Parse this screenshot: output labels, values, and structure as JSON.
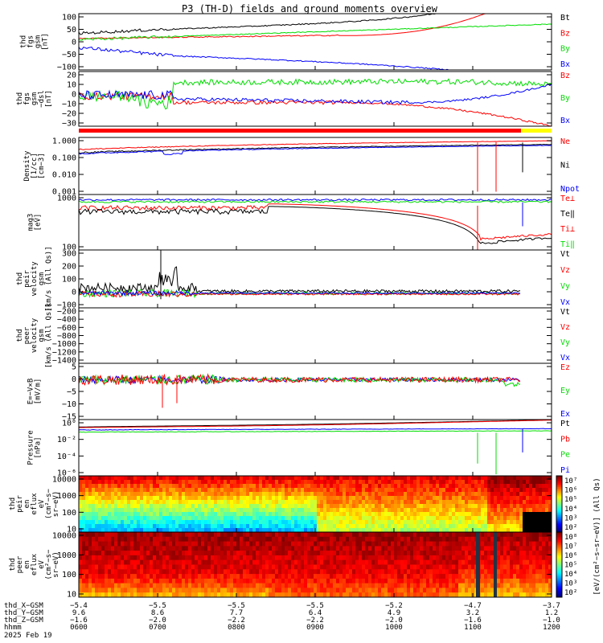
{
  "title": "P3 (TH-D) fields and ground moments overview",
  "colors": {
    "black": "#000000",
    "red": "#ff0000",
    "green": "#00dd00",
    "blue": "#0000ff"
  },
  "chart_data": [
    {
      "id": "fgs_gsm",
      "type": "line",
      "ylabel": [
        "thd",
        "fgs",
        "gsm",
        "[nT]"
      ],
      "ylim": [
        -100,
        100
      ],
      "yticks": [
        "100",
        "50",
        "0",
        "−50",
        "−100"
      ],
      "series": [
        {
          "name": "Bt",
          "color": "#000000"
        },
        {
          "name": "Bz",
          "color": "#ff0000"
        },
        {
          "name": "By",
          "color": "#00dd00"
        },
        {
          "name": "Bx",
          "color": "#0000ff"
        }
      ]
    },
    {
      "id": "fgs_gsm_dsl",
      "type": "line",
      "ylabel": [
        "thd",
        "fgs",
        "gsm",
        "−dsl",
        "[nT]"
      ],
      "ylim": [
        -38,
        22
      ],
      "yticks": [
        "20",
        "10",
        "0",
        "−10",
        "−20",
        "−30"
      ],
      "series": [
        {
          "name": "Bz",
          "color": "#ff0000"
        },
        {
          "name": "By",
          "color": "#00dd00"
        },
        {
          "name": "Bx",
          "color": "#0000ff"
        }
      ]
    },
    {
      "id": "density",
      "type": "line",
      "scale": "log",
      "ylabel": [
        "Density",
        "[1/cc]",
        "[cm−3]"
      ],
      "yticks": [
        "1.000",
        "0.100",
        "0.010",
        "0.001"
      ],
      "series": [
        {
          "name": "Ne",
          "color": "#ff0000"
        },
        {
          "name": "Ni",
          "color": "#000000"
        },
        {
          "name": "Npot",
          "color": "#0000ff"
        }
      ]
    },
    {
      "id": "temperature",
      "type": "line",
      "scale": "log",
      "ylabel": [
        "mag3",
        "[eV]"
      ],
      "yticks": [
        "1000",
        "100"
      ],
      "series": [
        {
          "name": "Te⊥",
          "color": "#ff0000"
        },
        {
          "name": "Te‖",
          "color": "#000000"
        },
        {
          "name": "Ti⊥",
          "color": "#ff0000"
        },
        {
          "name": "Ti‖",
          "color": "#00dd00"
        }
      ]
    },
    {
      "id": "peir_velocity",
      "type": "line",
      "ylabel": [
        "thd",
        "peir",
        "velocity",
        "gsm",
        "[km/s (All Qs)]"
      ],
      "ylim": [
        -100,
        300
      ],
      "yticks": [
        "300",
        "200",
        "100",
        "0",
        "−100"
      ],
      "series": [
        {
          "name": "Vt",
          "color": "#000000"
        },
        {
          "name": "Vz",
          "color": "#ff0000"
        },
        {
          "name": "Vy",
          "color": "#00dd00"
        },
        {
          "name": "Vx",
          "color": "#0000ff"
        }
      ]
    },
    {
      "id": "peer_velocity",
      "type": "line",
      "ylabel": [
        "thd",
        "peer",
        "velocity",
        "gsm",
        "[km/s (All Qs)]"
      ],
      "ylim": [
        -1450,
        -120
      ],
      "yticks": [
        "−200",
        "−400",
        "−600",
        "−800",
        "−1000",
        "−1200",
        "−1400"
      ],
      "series": [
        {
          "name": "Vt",
          "color": "#000000"
        },
        {
          "name": "Vz",
          "color": "#ff0000"
        },
        {
          "name": "Vy",
          "color": "#00dd00"
        },
        {
          "name": "Vx",
          "color": "#0000ff"
        }
      ]
    },
    {
      "id": "efield",
      "type": "line",
      "ylabel": [
        "E=−V×B",
        "[mV/m]"
      ],
      "ylim": [
        -17,
        7
      ],
      "yticks": [
        "5",
        "0",
        "−5",
        "−10",
        "−15"
      ],
      "series": [
        {
          "name": "Ez",
          "color": "#ff0000"
        },
        {
          "name": "Ey",
          "color": "#00dd00"
        },
        {
          "name": "Ex",
          "color": "#0000ff"
        }
      ]
    },
    {
      "id": "pressure",
      "type": "line",
      "scale": "log",
      "ylabel": [
        "Pressure",
        "[nPa]"
      ],
      "yticks": [
        "10⁰",
        "10⁻²",
        "10⁻⁴",
        "10⁻⁶"
      ],
      "series": [
        {
          "name": "Pt",
          "color": "#000000"
        },
        {
          "name": "Pb",
          "color": "#ff0000"
        },
        {
          "name": "Pe",
          "color": "#00dd00"
        },
        {
          "name": "Pi",
          "color": "#0000ff"
        }
      ]
    },
    {
      "id": "peir_spec",
      "type": "heatmap",
      "ylabel": [
        "thd",
        "peir",
        "en",
        "eflux",
        "eV",
        "(cm²−s−",
        "sr−eV)"
      ],
      "yticks": [
        "10000",
        "1000",
        "100",
        "10"
      ],
      "colorbar": {
        "ticks": [
          "10⁷",
          "10⁶",
          "10⁵",
          "10⁴",
          "10³",
          "10²"
        ]
      }
    },
    {
      "id": "peer_spec",
      "type": "heatmap",
      "ylabel": [
        "thd",
        "peer",
        "en",
        "eflux",
        "eV",
        "(cm²−s−",
        "sr−eV)"
      ],
      "yticks": [
        "10000",
        "1000",
        "100",
        "10"
      ],
      "colorbar": {
        "ticks": [
          "10⁸",
          "10⁷",
          "10⁶",
          "10⁵",
          "10⁴",
          "10³",
          "10²"
        ]
      }
    }
  ],
  "colorbar_label": "[eV/(cm²−s−sr−eV)] (All Qs)",
  "time_axis": {
    "rows": [
      {
        "label": "thd_X−GSM",
        "values": [
          "−5.4",
          "−5.5",
          "−5.5",
          "−5.5",
          "−5.2",
          "−4.7",
          "−3.7"
        ]
      },
      {
        "label": "thd_Y−GSM",
        "values": [
          "9.6",
          "8.6",
          "7.7",
          "6.4",
          "4.9",
          "3.2",
          "1.2"
        ]
      },
      {
        "label": "thd_Z−GSM",
        "values": [
          "−1.6",
          "−2.0",
          "−2.2",
          "−2.2",
          "−2.0",
          "−1.6",
          "−1.0"
        ]
      },
      {
        "label": "hhmm",
        "values": [
          "0600",
          "0700",
          "0800",
          "0900",
          "1000",
          "1100",
          "1200"
        ]
      }
    ],
    "date": "2025 Feb 19"
  }
}
